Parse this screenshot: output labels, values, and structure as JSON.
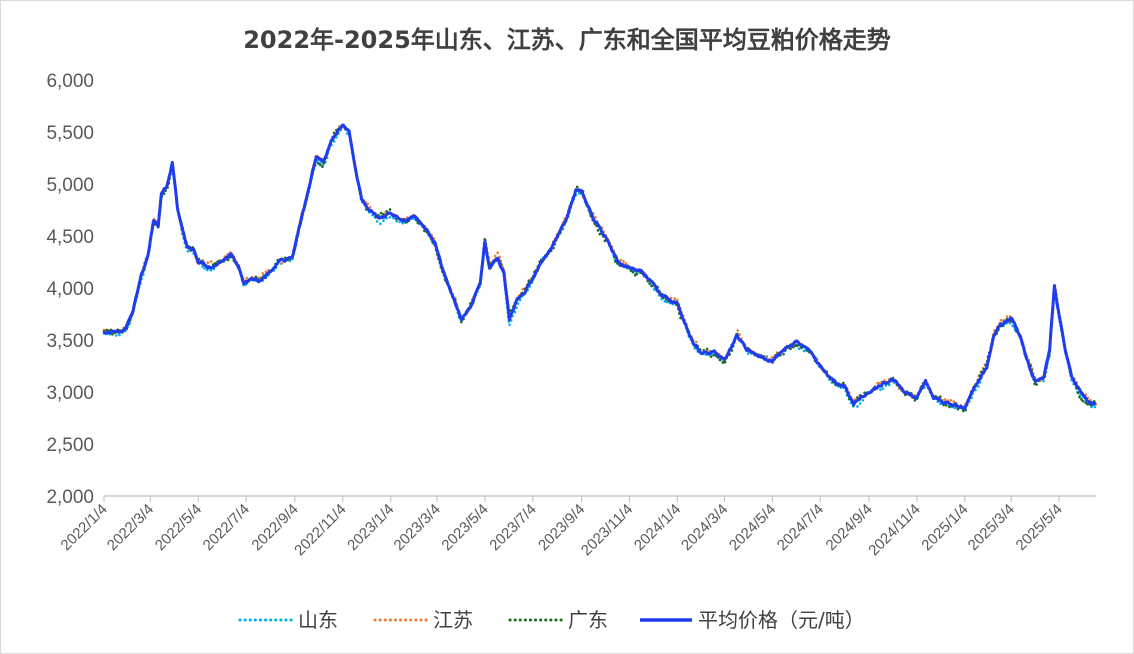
{
  "chart_data": {
    "type": "line",
    "title": "2022年-2025年山东、江苏、广东和全国平均豆粕价格走势",
    "xlabel": "",
    "ylabel": "",
    "ylim": [
      2000,
      6000
    ],
    "yticks": [
      "2,000",
      "2,500",
      "3,000",
      "3,500",
      "4,000",
      "4,500",
      "5,000",
      "5,500",
      "6,000"
    ],
    "ytick_values": [
      2000,
      2500,
      3000,
      3500,
      4000,
      4500,
      5000,
      5500,
      6000
    ],
    "xticks": [
      "2022/1/4",
      "2022/3/4",
      "2022/5/4",
      "2022/7/4",
      "2022/9/4",
      "2022/11/4",
      "2023/1/4",
      "2023/3/4",
      "2023/5/4",
      "2023/7/4",
      "2023/9/4",
      "2023/11/4",
      "2024/1/4",
      "2024/3/4",
      "2024/5/4",
      "2024/7/4",
      "2024/9/4",
      "2024/11/4",
      "2025/1/4",
      "2025/3/4",
      "2025/5/4"
    ],
    "x_end": "2025/6/20",
    "grid": false,
    "legend_position": "bottom",
    "average_series_anchors": [
      [
        "2022/1/4",
        3570
      ],
      [
        "2022/1/20",
        3580
      ],
      [
        "2022/2/1",
        3620
      ],
      [
        "2022/2/10",
        3780
      ],
      [
        "2022/2/20",
        4100
      ],
      [
        "2022/3/1",
        4300
      ],
      [
        "2022/3/8",
        4650
      ],
      [
        "2022/3/14",
        4600
      ],
      [
        "2022/3/18",
        4900
      ],
      [
        "2022/3/25",
        4980
      ],
      [
        "2022/4/1",
        5200
      ],
      [
        "2022/4/8",
        4750
      ],
      [
        "2022/4/14",
        4550
      ],
      [
        "2022/4/20",
        4400
      ],
      [
        "2022/4/28",
        4380
      ],
      [
        "2022/5/4",
        4250
      ],
      [
        "2022/5/20",
        4200
      ],
      [
        "2022/6/1",
        4250
      ],
      [
        "2022/6/15",
        4320
      ],
      [
        "2022/6/25",
        4200
      ],
      [
        "2022/7/1",
        4050
      ],
      [
        "2022/7/10",
        4100
      ],
      [
        "2022/7/20",
        4080
      ],
      [
        "2022/8/1",
        4150
      ],
      [
        "2022/8/15",
        4250
      ],
      [
        "2022/9/1",
        4300
      ],
      [
        "2022/9/10",
        4600
      ],
      [
        "2022/9/20",
        4900
      ],
      [
        "2022/10/1",
        5250
      ],
      [
        "2022/10/10",
        5200
      ],
      [
        "2022/10/20",
        5400
      ],
      [
        "2022/10/28",
        5500
      ],
      [
        "2022/11/4",
        5580
      ],
      [
        "2022/11/12",
        5500
      ],
      [
        "2022/11/20",
        5150
      ],
      [
        "2022/11/28",
        4850
      ],
      [
        "2022/12/10",
        4750
      ],
      [
        "2022/12/20",
        4680
      ],
      [
        "2023/1/4",
        4700
      ],
      [
        "2023/1/20",
        4650
      ],
      [
        "2023/2/1",
        4680
      ],
      [
        "2023/2/15",
        4600
      ],
      [
        "2023/3/1",
        4450
      ],
      [
        "2023/3/10",
        4200
      ],
      [
        "2023/3/25",
        3900
      ],
      [
        "2023/4/4",
        3700
      ],
      [
        "2023/4/15",
        3820
      ],
      [
        "2023/4/28",
        4050
      ],
      [
        "2023/5/4",
        4450
      ],
      [
        "2023/5/10",
        4200
      ],
      [
        "2023/5/20",
        4300
      ],
      [
        "2023/5/28",
        4150
      ],
      [
        "2023/6/4",
        3700
      ],
      [
        "2023/6/15",
        3900
      ],
      [
        "2023/6/25",
        3980
      ],
      [
        "2023/7/4",
        4100
      ],
      [
        "2023/7/15",
        4250
      ],
      [
        "2023/7/28",
        4400
      ],
      [
        "2023/8/4",
        4500
      ],
      [
        "2023/8/15",
        4650
      ],
      [
        "2023/8/28",
        4950
      ],
      [
        "2023/9/4",
        4930
      ],
      [
        "2023/9/15",
        4750
      ],
      [
        "2023/9/25",
        4600
      ],
      [
        "2023/10/8",
        4450
      ],
      [
        "2023/10/20",
        4250
      ],
      [
        "2023/11/4",
        4200
      ],
      [
        "2023/11/20",
        4150
      ],
      [
        "2023/12/1",
        4050
      ],
      [
        "2023/12/15",
        3920
      ],
      [
        "2024/1/4",
        3850
      ],
      [
        "2024/1/15",
        3650
      ],
      [
        "2024/1/25",
        3450
      ],
      [
        "2024/2/4",
        3380
      ],
      [
        "2024/2/20",
        3380
      ],
      [
        "2024/3/4",
        3300
      ],
      [
        "2024/3/20",
        3550
      ],
      [
        "2024/4/1",
        3420
      ],
      [
        "2024/4/15",
        3350
      ],
      [
        "2024/5/4",
        3300
      ],
      [
        "2024/5/20",
        3420
      ],
      [
        "2024/6/4",
        3480
      ],
      [
        "2024/6/20",
        3400
      ],
      [
        "2024/7/4",
        3250
      ],
      [
        "2024/7/20",
        3100
      ],
      [
        "2024/8/4",
        3050
      ],
      [
        "2024/8/15",
        2880
      ],
      [
        "2024/8/25",
        2950
      ],
      [
        "2024/9/4",
        3000
      ],
      [
        "2024/9/20",
        3080
      ],
      [
        "2024/10/4",
        3120
      ],
      [
        "2024/10/20",
        3000
      ],
      [
        "2024/11/4",
        2950
      ],
      [
        "2024/11/15",
        3100
      ],
      [
        "2024/11/25",
        2950
      ],
      [
        "2024/12/4",
        2920
      ],
      [
        "2024/12/20",
        2880
      ],
      [
        "2025/1/4",
        2850
      ],
      [
        "2025/1/20",
        3100
      ],
      [
        "2025/2/1",
        3250
      ],
      [
        "2025/2/10",
        3550
      ],
      [
        "2025/2/18",
        3650
      ],
      [
        "2025/3/4",
        3700
      ],
      [
        "2025/3/15",
        3550
      ],
      [
        "2025/3/25",
        3300
      ],
      [
        "2025/4/4",
        3100
      ],
      [
        "2025/4/15",
        3150
      ],
      [
        "2025/4/22",
        3400
      ],
      [
        "2025/4/28",
        4020
      ],
      [
        "2025/5/4",
        3750
      ],
      [
        "2025/5/12",
        3400
      ],
      [
        "2025/5/20",
        3150
      ],
      [
        "2025/6/1",
        2980
      ],
      [
        "2025/6/10",
        2920
      ],
      [
        "2025/6/20",
        2880
      ]
    ],
    "series": [
      {
        "name": "山东",
        "color": "#00b0f0",
        "style": "dotted",
        "offset": -18,
        "noise": 30
      },
      {
        "name": "江苏",
        "color": "#ed7d31",
        "style": "dotted",
        "offset": 12,
        "noise": 35
      },
      {
        "name": "广东",
        "color": "#1e6b1e",
        "style": "dotted",
        "offset": -8,
        "noise": 45
      },
      {
        "name": "平均价格（元/吨）",
        "color": "#1f3cf0",
        "style": "solid",
        "offset": 0,
        "noise": 20
      }
    ]
  }
}
